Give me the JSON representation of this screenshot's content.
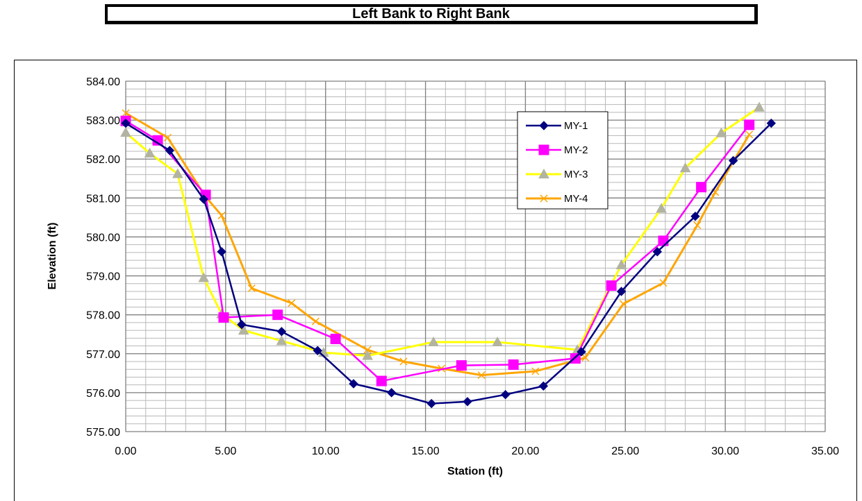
{
  "header": {
    "title": "Left Bank to Right Bank"
  },
  "chart_data": {
    "type": "line",
    "xlabel": "Station (ft)",
    "ylabel": "Elevation (ft)",
    "xlim": [
      0,
      35
    ],
    "ylim": [
      575,
      584
    ],
    "x_ticks": [
      "0.00",
      "5.00",
      "10.00",
      "15.00",
      "20.00",
      "25.00",
      "30.00",
      "35.00"
    ],
    "y_ticks": [
      "575.00",
      "576.00",
      "577.00",
      "578.00",
      "579.00",
      "580.00",
      "581.00",
      "582.00",
      "583.00",
      "584.00"
    ],
    "x_tick_values": [
      0,
      5,
      10,
      15,
      20,
      25,
      30,
      35
    ],
    "y_tick_values": [
      575,
      576,
      577,
      578,
      579,
      580,
      581,
      582,
      583,
      584
    ],
    "grid": true,
    "legend_position": "top-right",
    "series": [
      {
        "name": "MY-1",
        "color": "#000080",
        "marker": "diamond",
        "x": [
          0.0,
          2.2,
          3.9,
          4.8,
          5.8,
          7.8,
          9.6,
          11.4,
          13.3,
          15.3,
          17.1,
          19.0,
          20.9,
          22.8,
          24.8,
          26.6,
          28.5,
          30.4,
          32.3
        ],
        "y": [
          582.92,
          582.22,
          580.97,
          579.62,
          577.75,
          577.57,
          577.08,
          576.23,
          576.0,
          575.72,
          575.77,
          575.95,
          576.17,
          577.05,
          578.6,
          579.62,
          580.53,
          581.96,
          582.92
        ]
      },
      {
        "name": "MY-2",
        "color": "#FF00FF",
        "marker": "square",
        "x": [
          0.0,
          1.6,
          4.0,
          4.9,
          7.6,
          10.5,
          12.8,
          16.8,
          19.4,
          22.5,
          24.3,
          26.9,
          28.8,
          31.2
        ],
        "y": [
          582.98,
          582.48,
          581.08,
          577.93,
          578.0,
          577.38,
          576.3,
          576.7,
          576.72,
          576.88,
          578.75,
          579.9,
          581.28,
          582.88
        ]
      },
      {
        "name": "MY-3",
        "color": "#FFFF00",
        "marker": "triangle",
        "x": [
          0.0,
          1.2,
          2.6,
          3.9,
          4.8,
          5.9,
          7.8,
          9.9,
          12.1,
          15.4,
          18.6,
          22.6,
          24.8,
          26.8,
          28.0,
          29.8,
          31.7
        ],
        "y": [
          582.68,
          582.15,
          581.62,
          578.95,
          578.02,
          577.6,
          577.33,
          577.03,
          576.95,
          577.3,
          577.3,
          577.1,
          579.28,
          580.73,
          581.77,
          582.67,
          583.33
        ]
      },
      {
        "name": "MY-4",
        "color": "#FFA500",
        "marker": "x",
        "x": [
          0.0,
          2.1,
          4.0,
          4.8,
          6.3,
          8.3,
          9.5,
          12.1,
          13.9,
          15.8,
          17.8,
          20.5,
          23.0,
          24.9,
          26.9,
          28.6,
          29.5,
          31.2
        ],
        "y": [
          583.18,
          582.55,
          581.03,
          580.55,
          578.68,
          578.3,
          577.83,
          577.1,
          576.8,
          576.62,
          576.45,
          576.55,
          576.9,
          578.28,
          578.82,
          580.3,
          581.15,
          582.63
        ]
      }
    ]
  }
}
